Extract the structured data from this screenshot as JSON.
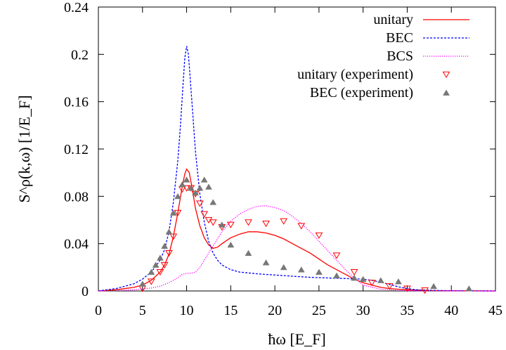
{
  "chart_data": {
    "type": "line",
    "title": "",
    "xlabel": "ħω [E_F]",
    "ylabel": "S^ρ(k,ω) [1/E_F]",
    "xlim": [
      0,
      45
    ],
    "ylim": [
      0,
      0.24
    ],
    "xticks": [
      "0",
      "5",
      "10",
      "15",
      "20",
      "25",
      "30",
      "35",
      "40",
      "45"
    ],
    "xtick_values": [
      0,
      5,
      10,
      15,
      20,
      25,
      30,
      35,
      40,
      45
    ],
    "yticks": [
      "0",
      "0.04",
      "0.08",
      "0.12",
      "0.16",
      "0.2",
      "0.24"
    ],
    "ytick_values": [
      0,
      0.04,
      0.08,
      0.12,
      0.16,
      0.2,
      0.24
    ],
    "grid": false,
    "legend_position": "top-right",
    "series": [
      {
        "name": "unitary",
        "style": "solid",
        "color": "#ff0000",
        "x": [
          0,
          2,
          4,
          5,
          6,
          7,
          7.5,
          8,
          8.5,
          9,
          9.5,
          9.8,
          10,
          10.3,
          10.6,
          11,
          11.5,
          12,
          12.5,
          13,
          13.5,
          14,
          15,
          16,
          17,
          18,
          19,
          20,
          21,
          22,
          23,
          24,
          25,
          26,
          27,
          28,
          29,
          30,
          31,
          32,
          33,
          34,
          35,
          36,
          37,
          38,
          40,
          42,
          45
        ],
        "y": [
          0,
          0.001,
          0.003,
          0.005,
          0.009,
          0.016,
          0.022,
          0.031,
          0.046,
          0.066,
          0.088,
          0.099,
          0.103,
          0.1,
          0.088,
          0.07,
          0.055,
          0.045,
          0.039,
          0.036,
          0.037,
          0.04,
          0.045,
          0.048,
          0.05,
          0.05,
          0.049,
          0.047,
          0.044,
          0.04,
          0.036,
          0.032,
          0.027,
          0.022,
          0.018,
          0.014,
          0.01,
          0.007,
          0.005,
          0.003,
          0.002,
          0.0015,
          0.001,
          0.0008,
          0.0005,
          0.0003,
          0.0002,
          0.0001,
          0
        ]
      },
      {
        "name": "BEC",
        "style": "dashed",
        "color": "#0000ff",
        "x": [
          0,
          2,
          4,
          5,
          6,
          7,
          7.5,
          8,
          8.5,
          9,
          9.3,
          9.6,
          9.8,
          10,
          10.2,
          10.4,
          10.7,
          11,
          11.5,
          12,
          12.5,
          13,
          13.5,
          14,
          15,
          16,
          18,
          20,
          22,
          24,
          26,
          28,
          30,
          31,
          32,
          33,
          34,
          35,
          36,
          38,
          40,
          45
        ],
        "y": [
          0,
          0.002,
          0.006,
          0.01,
          0.016,
          0.026,
          0.035,
          0.05,
          0.075,
          0.11,
          0.14,
          0.175,
          0.197,
          0.207,
          0.2,
          0.18,
          0.15,
          0.118,
          0.082,
          0.058,
          0.042,
          0.032,
          0.026,
          0.022,
          0.018,
          0.016,
          0.0145,
          0.0135,
          0.0125,
          0.0115,
          0.011,
          0.0105,
          0.01,
          0.009,
          0.0075,
          0.0055,
          0.0035,
          0.002,
          0.001,
          0.0005,
          0.0002,
          0
        ]
      },
      {
        "name": "BCS",
        "style": "dotted",
        "color": "#ff00ff",
        "x": [
          0,
          2,
          4,
          6,
          7,
          8,
          9,
          9.5,
          10,
          10.5,
          11,
          11.5,
          12,
          13,
          14,
          15,
          16,
          17,
          18,
          19,
          20,
          21,
          22,
          23,
          24,
          25,
          26,
          27,
          28,
          29,
          30,
          32,
          34,
          36,
          45
        ],
        "y": [
          0,
          0.0003,
          0.001,
          0.0025,
          0.004,
          0.007,
          0.011,
          0.014,
          0.015,
          0.015,
          0.016,
          0.02,
          0.026,
          0.038,
          0.05,
          0.059,
          0.065,
          0.069,
          0.0715,
          0.072,
          0.0705,
          0.068,
          0.063,
          0.057,
          0.05,
          0.042,
          0.034,
          0.026,
          0.018,
          0.011,
          0.005,
          0.0015,
          0.0005,
          0.0001,
          0
        ]
      }
    ],
    "scatter_series": [
      {
        "name": "unitary (experiment)",
        "marker": "triangle-down",
        "color": "#ff0000",
        "x": [
          5,
          6,
          7,
          7.5,
          8,
          8.5,
          9,
          9.5,
          10,
          10.5,
          11,
          11.5,
          12,
          12.5,
          13,
          14,
          15,
          17,
          19,
          21,
          23,
          25,
          27,
          29,
          31,
          33,
          35,
          37
        ],
        "y": [
          0.002,
          0.008,
          0.016,
          0.022,
          0.032,
          0.046,
          0.066,
          0.086,
          0.087,
          0.087,
          0.082,
          0.074,
          0.065,
          0.06,
          0.058,
          0.054,
          0.056,
          0.058,
          0.057,
          0.059,
          0.055,
          0.047,
          0.03,
          0.016,
          0.007,
          0.004,
          0.002,
          0.0005
        ]
      },
      {
        "name": "BEC (experiment)",
        "marker": "triangle-up",
        "color": "#777777",
        "x": [
          5,
          6,
          6.5,
          7,
          7.5,
          8,
          8.5,
          9,
          9.5,
          10,
          10.5,
          11,
          11.5,
          12,
          12.5,
          13,
          14,
          15,
          17,
          19,
          21,
          23,
          25,
          27,
          29,
          30,
          32,
          34,
          38,
          42
        ],
        "y": [
          0.006,
          0.016,
          0.022,
          0.028,
          0.038,
          0.05,
          0.066,
          0.08,
          0.09,
          0.094,
          0.087,
          0.083,
          0.087,
          0.094,
          0.088,
          0.075,
          0.056,
          0.039,
          0.032,
          0.024,
          0.02,
          0.018,
          0.016,
          0.013,
          0.011,
          0.01,
          0.009,
          0.008,
          0.004,
          0.002
        ]
      }
    ]
  }
}
